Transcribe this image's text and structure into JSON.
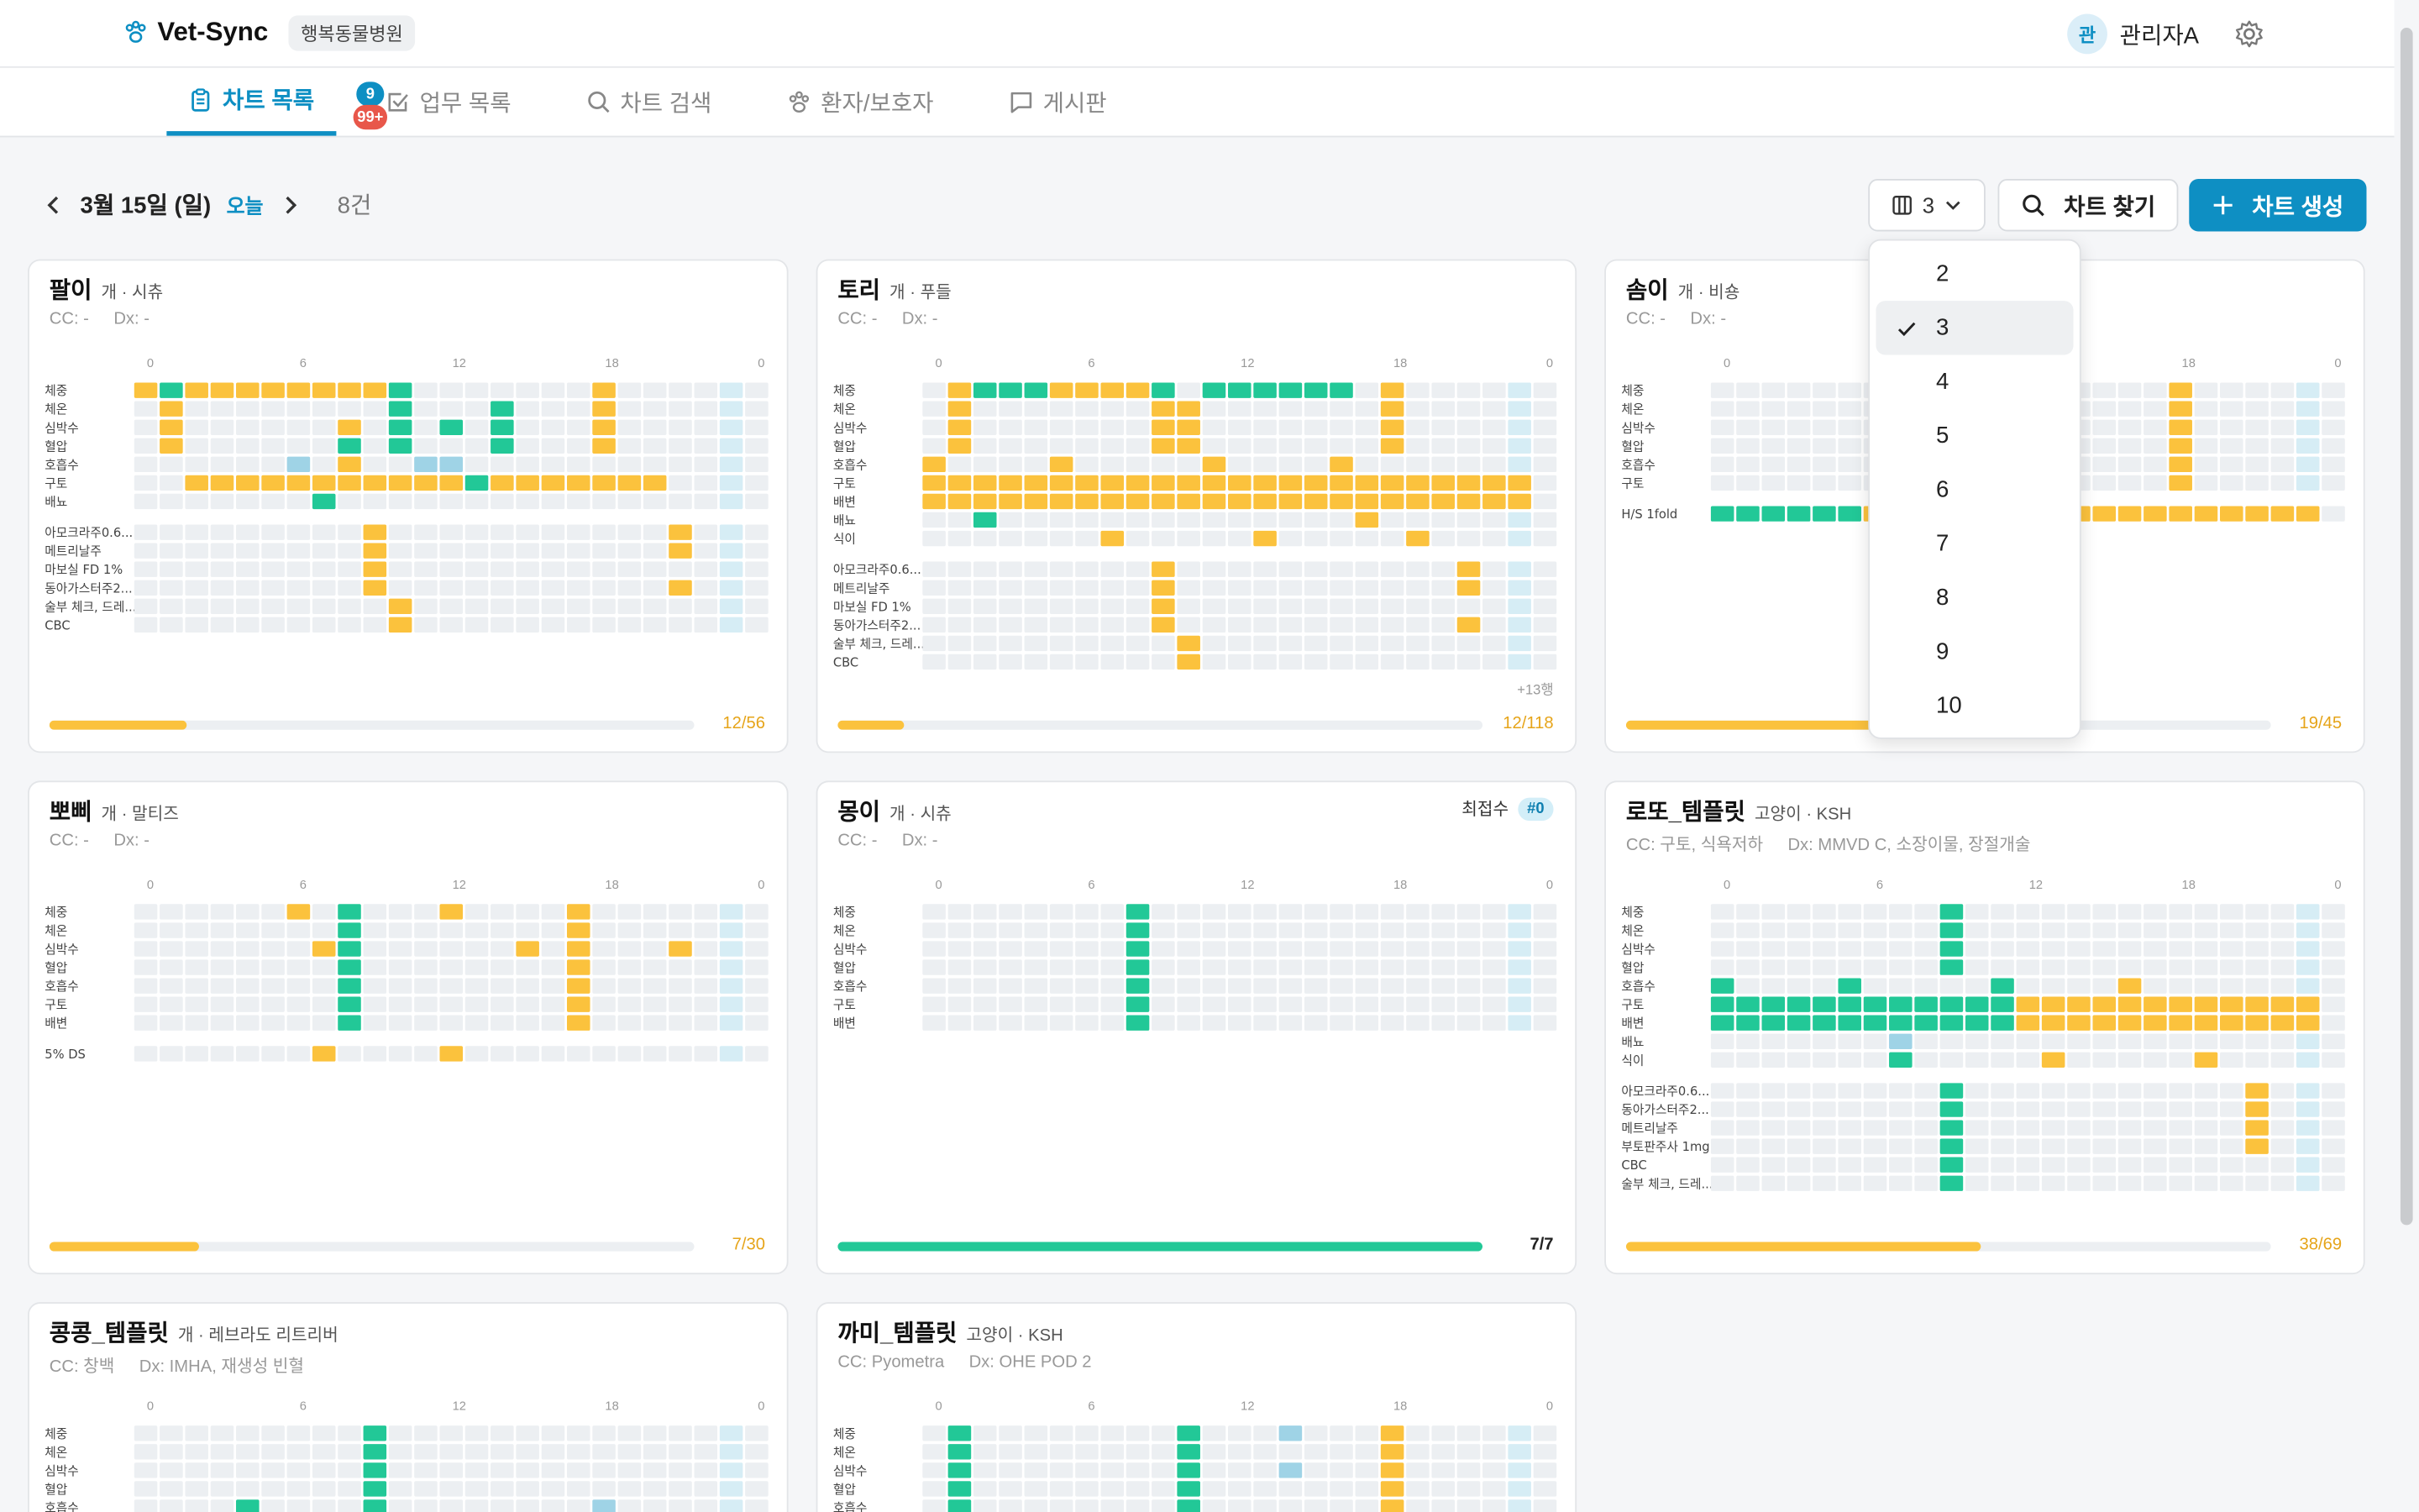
{
  "app": {
    "name": "Vet-Sync",
    "hospital": "행복동물병원",
    "user_initial": "관",
    "user_name": "관리자A"
  },
  "tabs": [
    {
      "label": "차트 목록",
      "active": true
    },
    {
      "label": "업무 목록",
      "badges": [
        "9",
        "99+"
      ]
    },
    {
      "label": "차트 검색"
    },
    {
      "label": "환자/보호자"
    },
    {
      "label": "게시판"
    }
  ],
  "toolbar": {
    "date": "3월 15일 (일)",
    "today": "오늘",
    "count": "8건",
    "columns_value": "3",
    "find_label": "차트 찾기",
    "create_label": "차트 생성"
  },
  "dropdown": {
    "options": [
      "2",
      "3",
      "4",
      "5",
      "6",
      "7",
      "8",
      "9",
      "10"
    ],
    "selected": "3"
  },
  "hour_ticks": [
    "0",
    "6",
    "12",
    "18",
    "0"
  ],
  "colors": {
    "accent": "#0e8fc3",
    "done": "#22c897",
    "pending": "#fbc23d",
    "scheduled": "#9fd3e6",
    "empty": "#eceff2",
    "now": "#d6edf5"
  },
  "cards": [
    {
      "name": "팔이",
      "species": "개 · 시츄",
      "cc": "CC: -",
      "dx": "Dx: -",
      "rows": [
        {
          "label": "체중",
          "cells": "P:0,D:1,P:2-10,D:10,P:18"
        },
        {
          "label": "체온",
          "cells": "P:1,D:10,D:14,P:18"
        },
        {
          "label": "심박수",
          "cells": "P:1,P:8,D:10,D:12,D:14,P:18"
        },
        {
          "label": "혈압",
          "cells": "P:1,D:8,D:10,D:14,P:18"
        },
        {
          "label": "호흡수",
          "cells": "S:6,P:8,S:11,S:12"
        },
        {
          "label": "구토",
          "cells": "P:2-12,D:13,P:14-20"
        },
        {
          "label": "배뇨",
          "cells": "D:7"
        },
        {
          "sep": true
        },
        {
          "label": "아모크라주0.6...",
          "cells": "P:9,P:21"
        },
        {
          "label": "메트리날주",
          "cells": "P:9,P:21"
        },
        {
          "label": "마보실 FD 1%",
          "cells": "P:9"
        },
        {
          "label": "동아가스터주2...",
          "cells": "P:9,P:21"
        },
        {
          "label": "술부 체크, 드레...",
          "cells": "P:10"
        },
        {
          "label": "CBC",
          "cells": "P:10"
        }
      ],
      "progress": {
        "text": "12/56",
        "value": 0.214,
        "color": "pending"
      }
    },
    {
      "name": "토리",
      "species": "개 · 푸들",
      "cc": "CC: -",
      "dx": "Dx: -",
      "rows": [
        {
          "label": "체중",
          "cells": "P:1,D:2-4,P:5-8,D:9,D:11-16,P:18"
        },
        {
          "label": "체온",
          "cells": "P:1,P:9,P:10,P:18"
        },
        {
          "label": "심박수",
          "cells": "P:1,P:9,P:10,P:18"
        },
        {
          "label": "혈압",
          "cells": "P:1,P:9,P:10,P:18"
        },
        {
          "label": "호흡수",
          "cells": "P:0,P:5,P:11,P:16"
        },
        {
          "label": "구토",
          "cells": "P:0-23"
        },
        {
          "label": "배변",
          "cells": "P:0-23"
        },
        {
          "label": "배뇨",
          "cells": "D:2,P:17"
        },
        {
          "label": "식이",
          "cells": "P:7,P:13,P:19"
        },
        {
          "sep": true
        },
        {
          "label": "아모크라주0.6...",
          "cells": "P:9,P:21"
        },
        {
          "label": "메트리날주",
          "cells": "P:9,P:21"
        },
        {
          "label": "마보실 FD 1%",
          "cells": "P:9"
        },
        {
          "label": "동아가스터주2...",
          "cells": "P:9,P:21"
        },
        {
          "label": "술부 체크, 드레...",
          "cells": "P:10"
        },
        {
          "label": "CBC",
          "cells": "P:10"
        }
      ],
      "extra": "+13행",
      "progress": {
        "text": "12/118",
        "value": 0.102,
        "color": "pending"
      }
    },
    {
      "name": "솜이",
      "species": "개 · 비숑",
      "cc": "CC: -",
      "dx": "Dx: -",
      "rows": [
        {
          "label": "체중",
          "cells": "P:18"
        },
        {
          "label": "체온",
          "cells": "P:18"
        },
        {
          "label": "심박수",
          "cells": "P:18"
        },
        {
          "label": "혈압",
          "cells": "P:18"
        },
        {
          "label": "호흡수",
          "cells": "P:18"
        },
        {
          "label": "구토",
          "cells": "P:18"
        },
        {
          "sep": true
        },
        {
          "label": "H/S 1fold",
          "cells": "D:0-5,P:6-23"
        }
      ],
      "progress": {
        "text": "19/45",
        "value": 0.422,
        "color": "pending"
      }
    },
    {
      "name": "뽀삐",
      "species": "개 · 말티즈",
      "cc": "CC: -",
      "dx": "Dx: -",
      "rows": [
        {
          "label": "체중",
          "cells": "P:6,D:8,P:12,P:17"
        },
        {
          "label": "체온",
          "cells": "D:8,P:17"
        },
        {
          "label": "심박수",
          "cells": "P:7,D:8,P:15,P:17,P:21"
        },
        {
          "label": "혈압",
          "cells": "D:8,P:17"
        },
        {
          "label": "호흡수",
          "cells": "D:8,P:17"
        },
        {
          "label": "구토",
          "cells": "D:8,P:17"
        },
        {
          "label": "배변",
          "cells": "D:8,P:17"
        },
        {
          "sep": true
        },
        {
          "label": "5% DS",
          "cells": "P:7,P:12"
        }
      ],
      "progress": {
        "text": "7/30",
        "value": 0.233,
        "color": "pending"
      }
    },
    {
      "name": "몽이",
      "species": "개 · 시츄",
      "cc": "CC: -",
      "dx": "Dx: -",
      "recent_label": "최접수",
      "recent_badge": "#0",
      "rows": [
        {
          "label": "체중",
          "cells": "D:8"
        },
        {
          "label": "체온",
          "cells": "D:8"
        },
        {
          "label": "심박수",
          "cells": "D:8"
        },
        {
          "label": "혈압",
          "cells": "D:8"
        },
        {
          "label": "호흡수",
          "cells": "D:8"
        },
        {
          "label": "구토",
          "cells": "D:8"
        },
        {
          "label": "배변",
          "cells": "D:8"
        }
      ],
      "progress": {
        "text": "7/7",
        "value": 1.0,
        "color": "done"
      }
    },
    {
      "name": "로또_템플릿",
      "species": "고양이 · KSH",
      "cc": "CC: 구토, 식욕저하",
      "dx": "Dx: MMVD C, 소장이물, 장절개술",
      "rows": [
        {
          "label": "체중",
          "cells": "D:9"
        },
        {
          "label": "체온",
          "cells": "D:9"
        },
        {
          "label": "심박수",
          "cells": "D:9"
        },
        {
          "label": "혈압",
          "cells": "D:9"
        },
        {
          "label": "호흡수",
          "cells": "D:0,D:5,D:11,P:16"
        },
        {
          "label": "구토",
          "cells": "D:0-11,P:12-23"
        },
        {
          "label": "배변",
          "cells": "D:0-11,P:12-23"
        },
        {
          "label": "배뇨",
          "cells": "S:7"
        },
        {
          "label": "식이",
          "cells": "D:7,P:13,P:19"
        },
        {
          "sep": true
        },
        {
          "label": "아모크라주0.6...",
          "cells": "D:9,P:21"
        },
        {
          "label": "동아가스터주2...",
          "cells": "D:9,P:21"
        },
        {
          "label": "메트리날주",
          "cells": "D:9,P:21"
        },
        {
          "label": "부토판주사 1mg",
          "cells": "D:9,P:21"
        },
        {
          "label": "CBC",
          "cells": "D:9"
        },
        {
          "label": "술부 체크, 드레...",
          "cells": "D:9"
        }
      ],
      "progress": {
        "text": "38/69",
        "value": 0.551,
        "color": "pending"
      }
    },
    {
      "name": "콩콩_템플릿",
      "species": "개 · 레브라도 리트리버",
      "cc": "CC: 창백",
      "dx": "Dx: IMHA, 재생성 빈혈",
      "rows": [
        {
          "label": "체중",
          "cells": "D:9"
        },
        {
          "label": "체온",
          "cells": "D:9"
        },
        {
          "label": "심박수",
          "cells": "D:9"
        },
        {
          "label": "혈압",
          "cells": "D:9"
        },
        {
          "label": "호흡수",
          "cells": "D:4,D:9,S:18"
        }
      ],
      "progress": {
        "text": "",
        "value": 0,
        "color": "pending"
      }
    },
    {
      "name": "까미_템플릿",
      "species": "고양이 · KSH",
      "cc": "CC: Pyometra",
      "dx": "Dx: OHE POD 2",
      "rows": [
        {
          "label": "체중",
          "cells": "D:1,D:10,S:14,P:18"
        },
        {
          "label": "체온",
          "cells": "D:1,D:10,P:18"
        },
        {
          "label": "심박수",
          "cells": "D:1,D:10,S:14,P:18"
        },
        {
          "label": "혈압",
          "cells": "D:1,D:10,P:18"
        },
        {
          "label": "호흡수",
          "cells": "D:1,D:10,P:18"
        }
      ],
      "progress": {
        "text": "",
        "value": 0,
        "color": "pending"
      }
    }
  ]
}
